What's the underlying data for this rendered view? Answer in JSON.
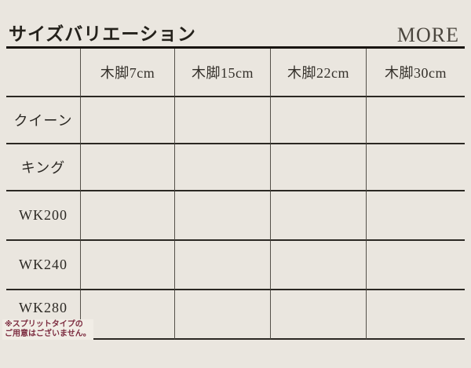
{
  "header": {
    "title": "サイズバリエーション",
    "more_label": "MORE"
  },
  "table": {
    "column_headers": [
      "木脚7cm",
      "木脚15cm",
      "木脚22cm",
      "木脚30cm"
    ],
    "rows": [
      {
        "label": "クイーン"
      },
      {
        "label": "キング"
      },
      {
        "label": "WK200"
      },
      {
        "label": "WK240"
      },
      {
        "label": "WK280"
      }
    ],
    "note": {
      "line1": "※スプリットタイプの",
      "line2": "ご用意はございません。"
    }
  },
  "colors": {
    "background": "#EAE6DF",
    "header_rule": "#18140F",
    "grid_horizontal": "#2B2823",
    "grid_vertical": "#55514A",
    "note_red": "#7C2B3F"
  }
}
